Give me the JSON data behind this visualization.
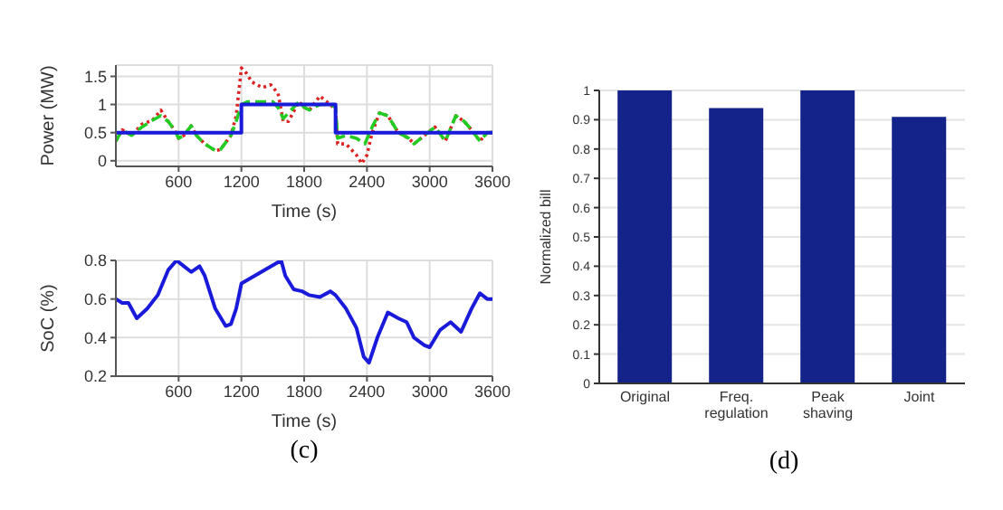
{
  "chart_data": [
    {
      "type": "line",
      "xlabel": "Time (s)",
      "ylabel": "Power (MW)",
      "xlim": [
        0,
        3600
      ],
      "xticks": [
        600,
        1200,
        1800,
        2400,
        3000,
        3600
      ],
      "ylim": [
        -0.1,
        1.7
      ],
      "yticks": [
        0,
        0.5,
        1,
        1.5
      ],
      "grid": true,
      "marker": "none",
      "series": [
        {
          "type": "line",
          "color": "#dd2222",
          "line_style": "dotted",
          "x": [
            0,
            60,
            150,
            250,
            350,
            430,
            500,
            560,
            600,
            650,
            720,
            770,
            850,
            950,
            1000,
            1100,
            1150,
            1200,
            1250,
            1300,
            1400,
            1480,
            1550,
            1600,
            1650,
            1750,
            1800,
            1850,
            1950,
            2050,
            2100,
            2120,
            2200,
            2300,
            2350,
            2400,
            2450,
            2520,
            2600,
            2700,
            2800,
            2850,
            2950,
            3050,
            3150,
            3250,
            3330,
            3400,
            3480,
            3550,
            3600
          ],
          "values": [
            0.35,
            0.55,
            0.45,
            0.65,
            0.72,
            0.9,
            0.7,
            0.55,
            0.4,
            0.45,
            0.62,
            0.45,
            0.3,
            0.18,
            0.2,
            0.45,
            0.8,
            1.65,
            1.55,
            1.4,
            1.3,
            1.35,
            1.2,
            0.7,
            0.7,
            1.05,
            0.95,
            0.9,
            1.15,
            1.0,
            0.9,
            0.3,
            0.3,
            0.1,
            -0.05,
            0.1,
            0.5,
            0.85,
            0.8,
            0.5,
            0.4,
            0.3,
            0.45,
            0.6,
            0.35,
            0.8,
            0.7,
            0.55,
            0.35,
            0.5,
            0.5
          ]
        },
        {
          "type": "line",
          "color": "#22cc22",
          "line_style": "dashed",
          "x": [
            0,
            60,
            150,
            250,
            350,
            430,
            500,
            560,
            600,
            650,
            720,
            770,
            850,
            950,
            1000,
            1100,
            1150,
            1200,
            1260,
            1500,
            1550,
            1600,
            1650,
            1750,
            1800,
            1850,
            1950,
            2050,
            2100,
            2120,
            2200,
            2300,
            2380,
            2450,
            2520,
            2600,
            2700,
            2800,
            2850,
            2950,
            3050,
            3150,
            3250,
            3330,
            3400,
            3480,
            3550,
            3600
          ],
          "values": [
            0.35,
            0.55,
            0.45,
            0.6,
            0.72,
            0.8,
            0.7,
            0.55,
            0.4,
            0.45,
            0.62,
            0.45,
            0.3,
            0.18,
            0.2,
            0.45,
            0.7,
            1.0,
            1.05,
            1.05,
            0.95,
            0.75,
            0.85,
            1.05,
            0.95,
            0.9,
            1.0,
            1.0,
            0.95,
            0.4,
            0.45,
            0.4,
            0.3,
            0.6,
            0.85,
            0.8,
            0.5,
            0.4,
            0.3,
            0.45,
            0.6,
            0.35,
            0.8,
            0.7,
            0.55,
            0.35,
            0.5,
            0.5
          ]
        },
        {
          "type": "step",
          "color": "#1a1adb",
          "line_style": "solid",
          "x": [
            0,
            1200,
            2100,
            3600
          ],
          "values": [
            0.5,
            1,
            0.5,
            0.5
          ]
        }
      ]
    },
    {
      "type": "line",
      "xlabel": "Time (s)",
      "ylabel": "SoC (%)",
      "xlim": [
        0,
        3600
      ],
      "xticks": [
        600,
        1200,
        1800,
        2400,
        3000,
        3600
      ],
      "ylim": [
        0.2,
        0.8
      ],
      "yticks": [
        0.2,
        0.4,
        0.6,
        0.8
      ],
      "grid": true,
      "marker": "none",
      "annotations": [
        "(c)"
      ],
      "series": [
        {
          "color": "#1a1adb",
          "line_style": "solid",
          "x": [
            0,
            60,
            120,
            200,
            300,
            400,
            500,
            580,
            650,
            720,
            800,
            850,
            950,
            1050,
            1100,
            1150,
            1200,
            1580,
            1620,
            1700,
            1780,
            1850,
            1950,
            2050,
            2100,
            2200,
            2300,
            2370,
            2420,
            2500,
            2600,
            2700,
            2780,
            2850,
            2950,
            3000,
            3100,
            3200,
            3300,
            3400,
            3480,
            3550,
            3600
          ],
          "values": [
            0.6,
            0.58,
            0.58,
            0.5,
            0.55,
            0.62,
            0.75,
            0.8,
            0.77,
            0.74,
            0.77,
            0.72,
            0.55,
            0.46,
            0.47,
            0.55,
            0.68,
            0.8,
            0.72,
            0.65,
            0.64,
            0.62,
            0.61,
            0.64,
            0.62,
            0.55,
            0.45,
            0.3,
            0.27,
            0.4,
            0.53,
            0.5,
            0.48,
            0.4,
            0.36,
            0.35,
            0.44,
            0.48,
            0.43,
            0.55,
            0.63,
            0.6,
            0.6
          ]
        }
      ]
    },
    {
      "type": "bar",
      "ylabel": "Normalized bill",
      "categories": [
        "Original",
        "Freq. regulation",
        "Peak shaving",
        "Joint"
      ],
      "values": [
        1,
        0.94,
        1,
        0.91
      ],
      "color": "#14238a",
      "ylim": [
        0,
        1
      ],
      "yticks": [
        0,
        0.1,
        0.2,
        0.3,
        0.4,
        0.5,
        0.6,
        0.7,
        0.8,
        0.9,
        1
      ],
      "grid": "y",
      "annotations": [
        "(d)"
      ]
    }
  ]
}
